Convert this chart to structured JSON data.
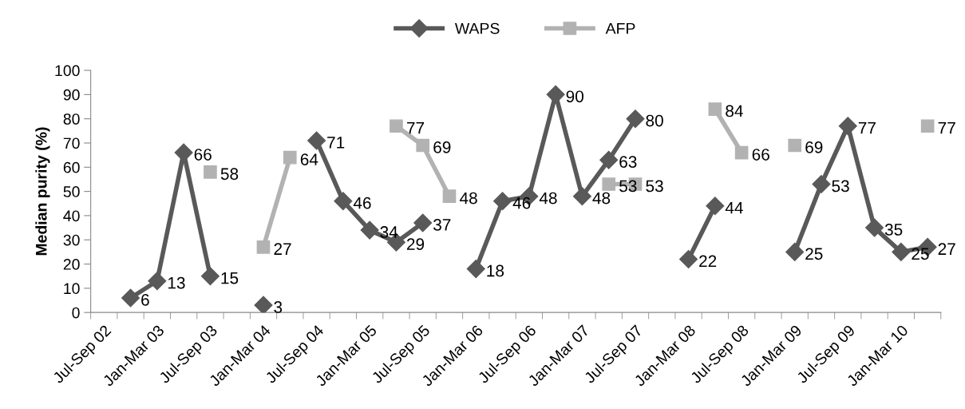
{
  "chart_data": {
    "type": "line",
    "ylabel": "Median purity (%)",
    "categories": [
      "Jul-Sep 02",
      null,
      "Jan-Mar 03",
      null,
      "Jul-Sep 03",
      null,
      "Jan-Mar 04",
      null,
      "Jul-Sep 04",
      null,
      "Jan-Mar 05",
      null,
      "Jul-Sep 05",
      null,
      "Jan-Mar 06",
      null,
      "Jul-Sep 06",
      null,
      "Jan-Mar 07",
      null,
      "Jul-Sep 07",
      null,
      "Jan-Mar 08",
      null,
      "Jul-Sep 08",
      null,
      "Jan-Mar 09",
      null,
      "Jul-Sep 09",
      null,
      "Jan-Mar 10",
      null
    ],
    "series": [
      {
        "name": "WAPS",
        "color": "#595959",
        "marker": "diamond",
        "values": [
          null,
          6,
          13,
          66,
          15,
          null,
          3,
          null,
          71,
          46,
          34,
          29,
          37,
          null,
          18,
          46,
          48,
          90,
          48,
          63,
          80,
          null,
          22,
          44,
          null,
          null,
          25,
          53,
          77,
          35,
          25,
          27
        ]
      },
      {
        "name": "AFP",
        "color": "#b2b2b2",
        "marker": "square",
        "values": [
          null,
          null,
          null,
          null,
          58,
          null,
          27,
          64,
          null,
          null,
          null,
          77,
          69,
          48,
          null,
          null,
          null,
          null,
          null,
          53,
          53,
          null,
          null,
          84,
          66,
          null,
          69,
          null,
          null,
          null,
          null,
          77
        ]
      }
    ],
    "ylim": [
      0,
      100
    ],
    "yticks": [
      0,
      10,
      20,
      30,
      40,
      50,
      60,
      70,
      80,
      90,
      100
    ],
    "grid": false,
    "legend": "top",
    "data_labels": true,
    "line_style": "solid"
  }
}
